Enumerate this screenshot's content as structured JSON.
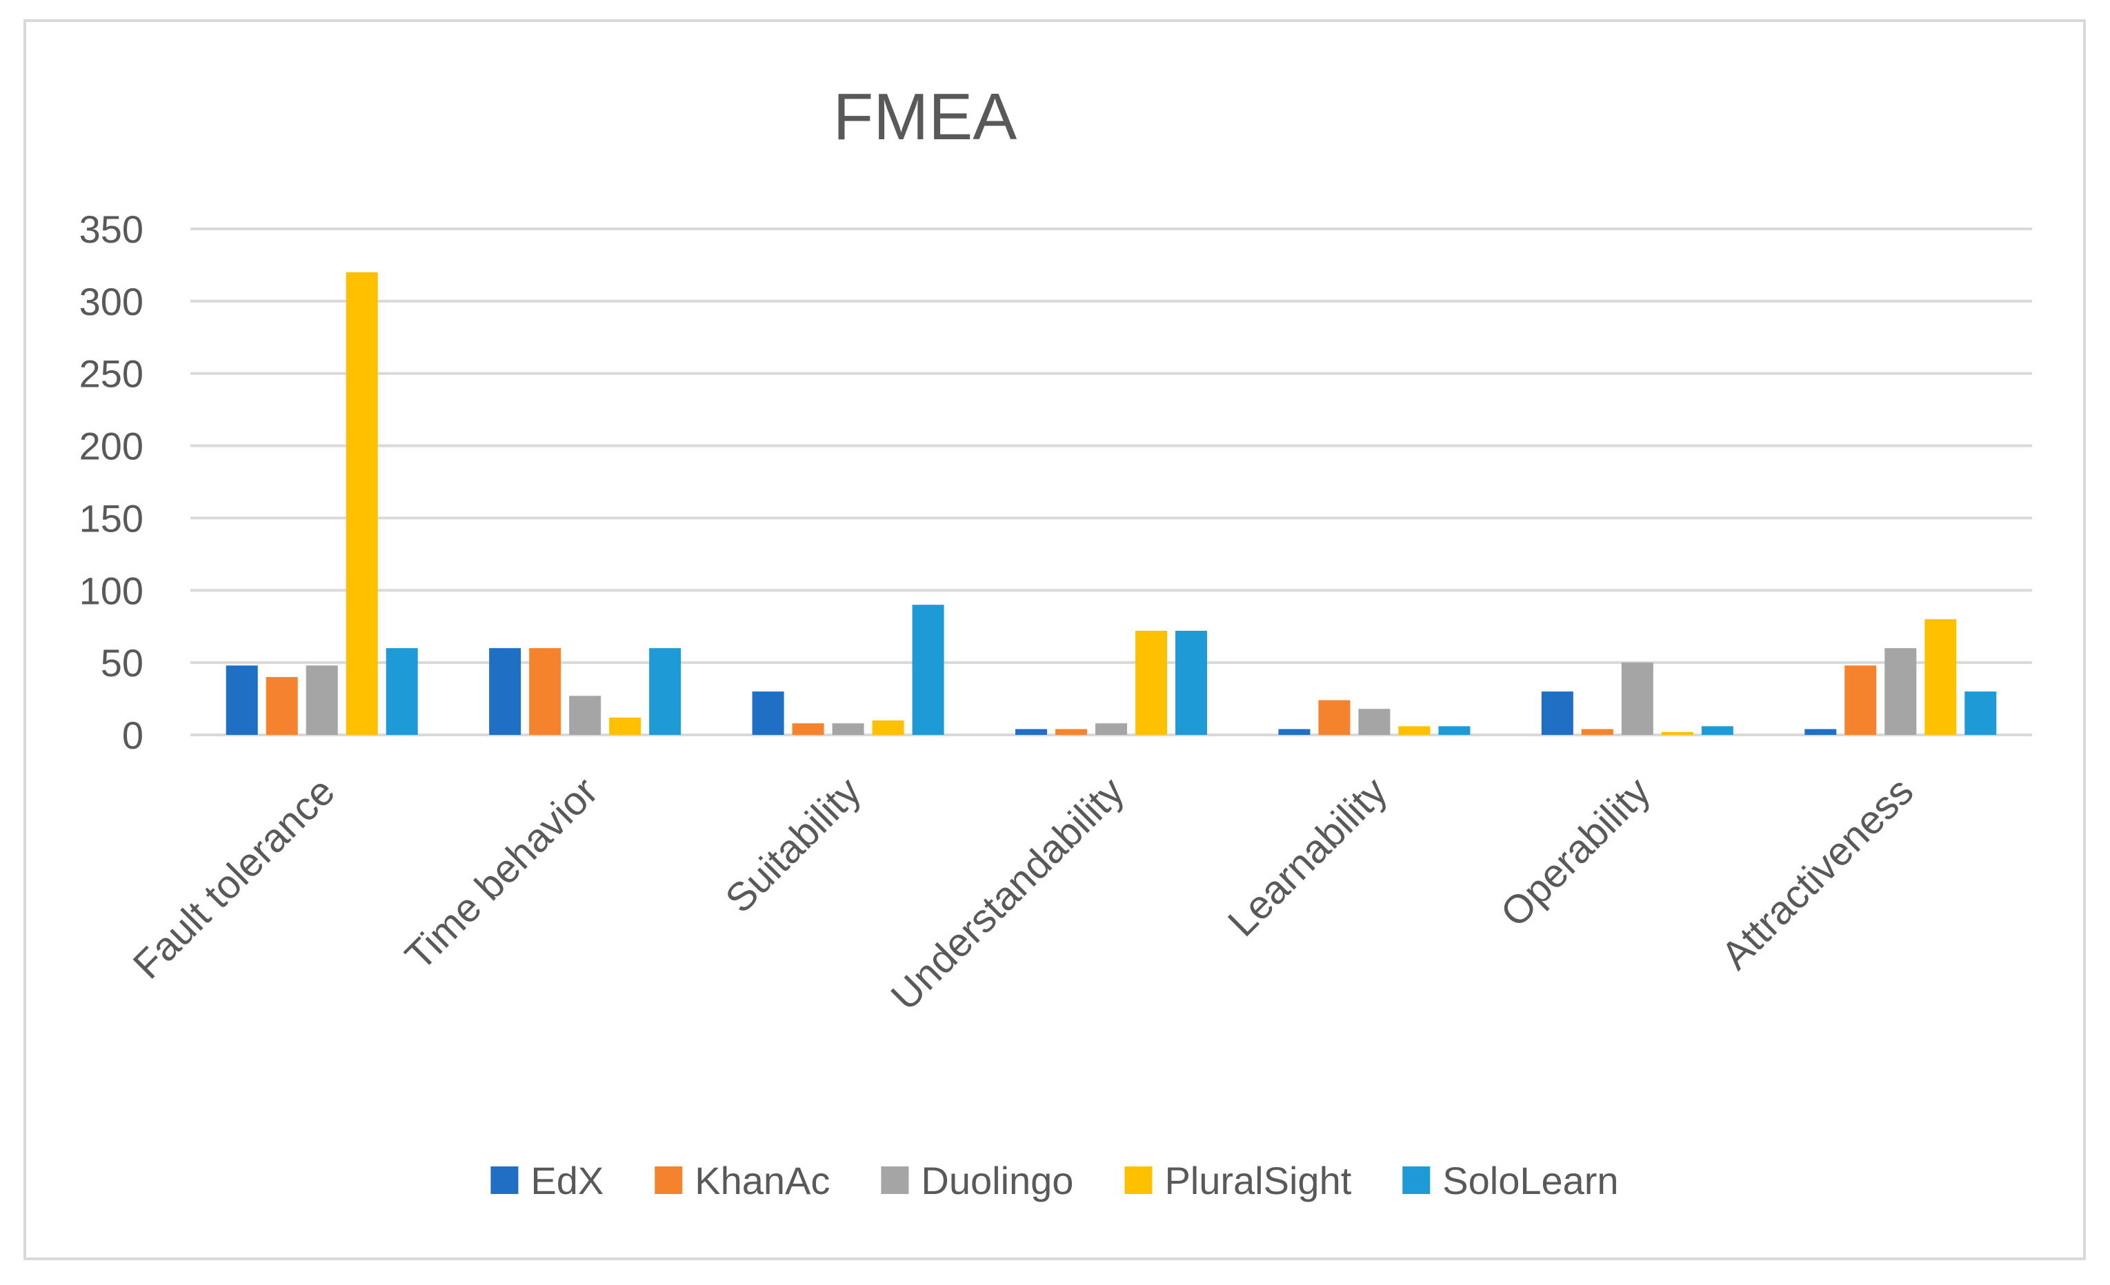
{
  "chart_data": {
    "type": "bar",
    "title": "FMEA",
    "xlabel": "",
    "ylabel": "",
    "ylim": [
      0,
      350
    ],
    "yticks": [
      0,
      50,
      100,
      150,
      200,
      250,
      300,
      350
    ],
    "grid": true,
    "legend_position": "bottom",
    "categories": [
      "Fault tolerance",
      "Time behavior",
      "Suitability",
      "Understandability",
      "Learnability",
      "Operability",
      "Attractiveness"
    ],
    "series": [
      {
        "name": "EdX",
        "color": "#1f6fc5",
        "values": [
          48,
          60,
          30,
          4,
          4,
          30,
          4
        ]
      },
      {
        "name": "KhanAc",
        "color": "#f5822d",
        "values": [
          40,
          60,
          8,
          4,
          24,
          4,
          48
        ]
      },
      {
        "name": "Duolingo",
        "color": "#a5a5a5",
        "values": [
          48,
          27,
          8,
          8,
          18,
          50,
          60
        ]
      },
      {
        "name": "PluralSight",
        "color": "#ffc000",
        "values": [
          320,
          12,
          10,
          72,
          6,
          2,
          80
        ]
      },
      {
        "name": "SoloLearn",
        "color": "#1e9bd7",
        "values": [
          60,
          60,
          90,
          72,
          6,
          6,
          30
        ]
      }
    ]
  }
}
